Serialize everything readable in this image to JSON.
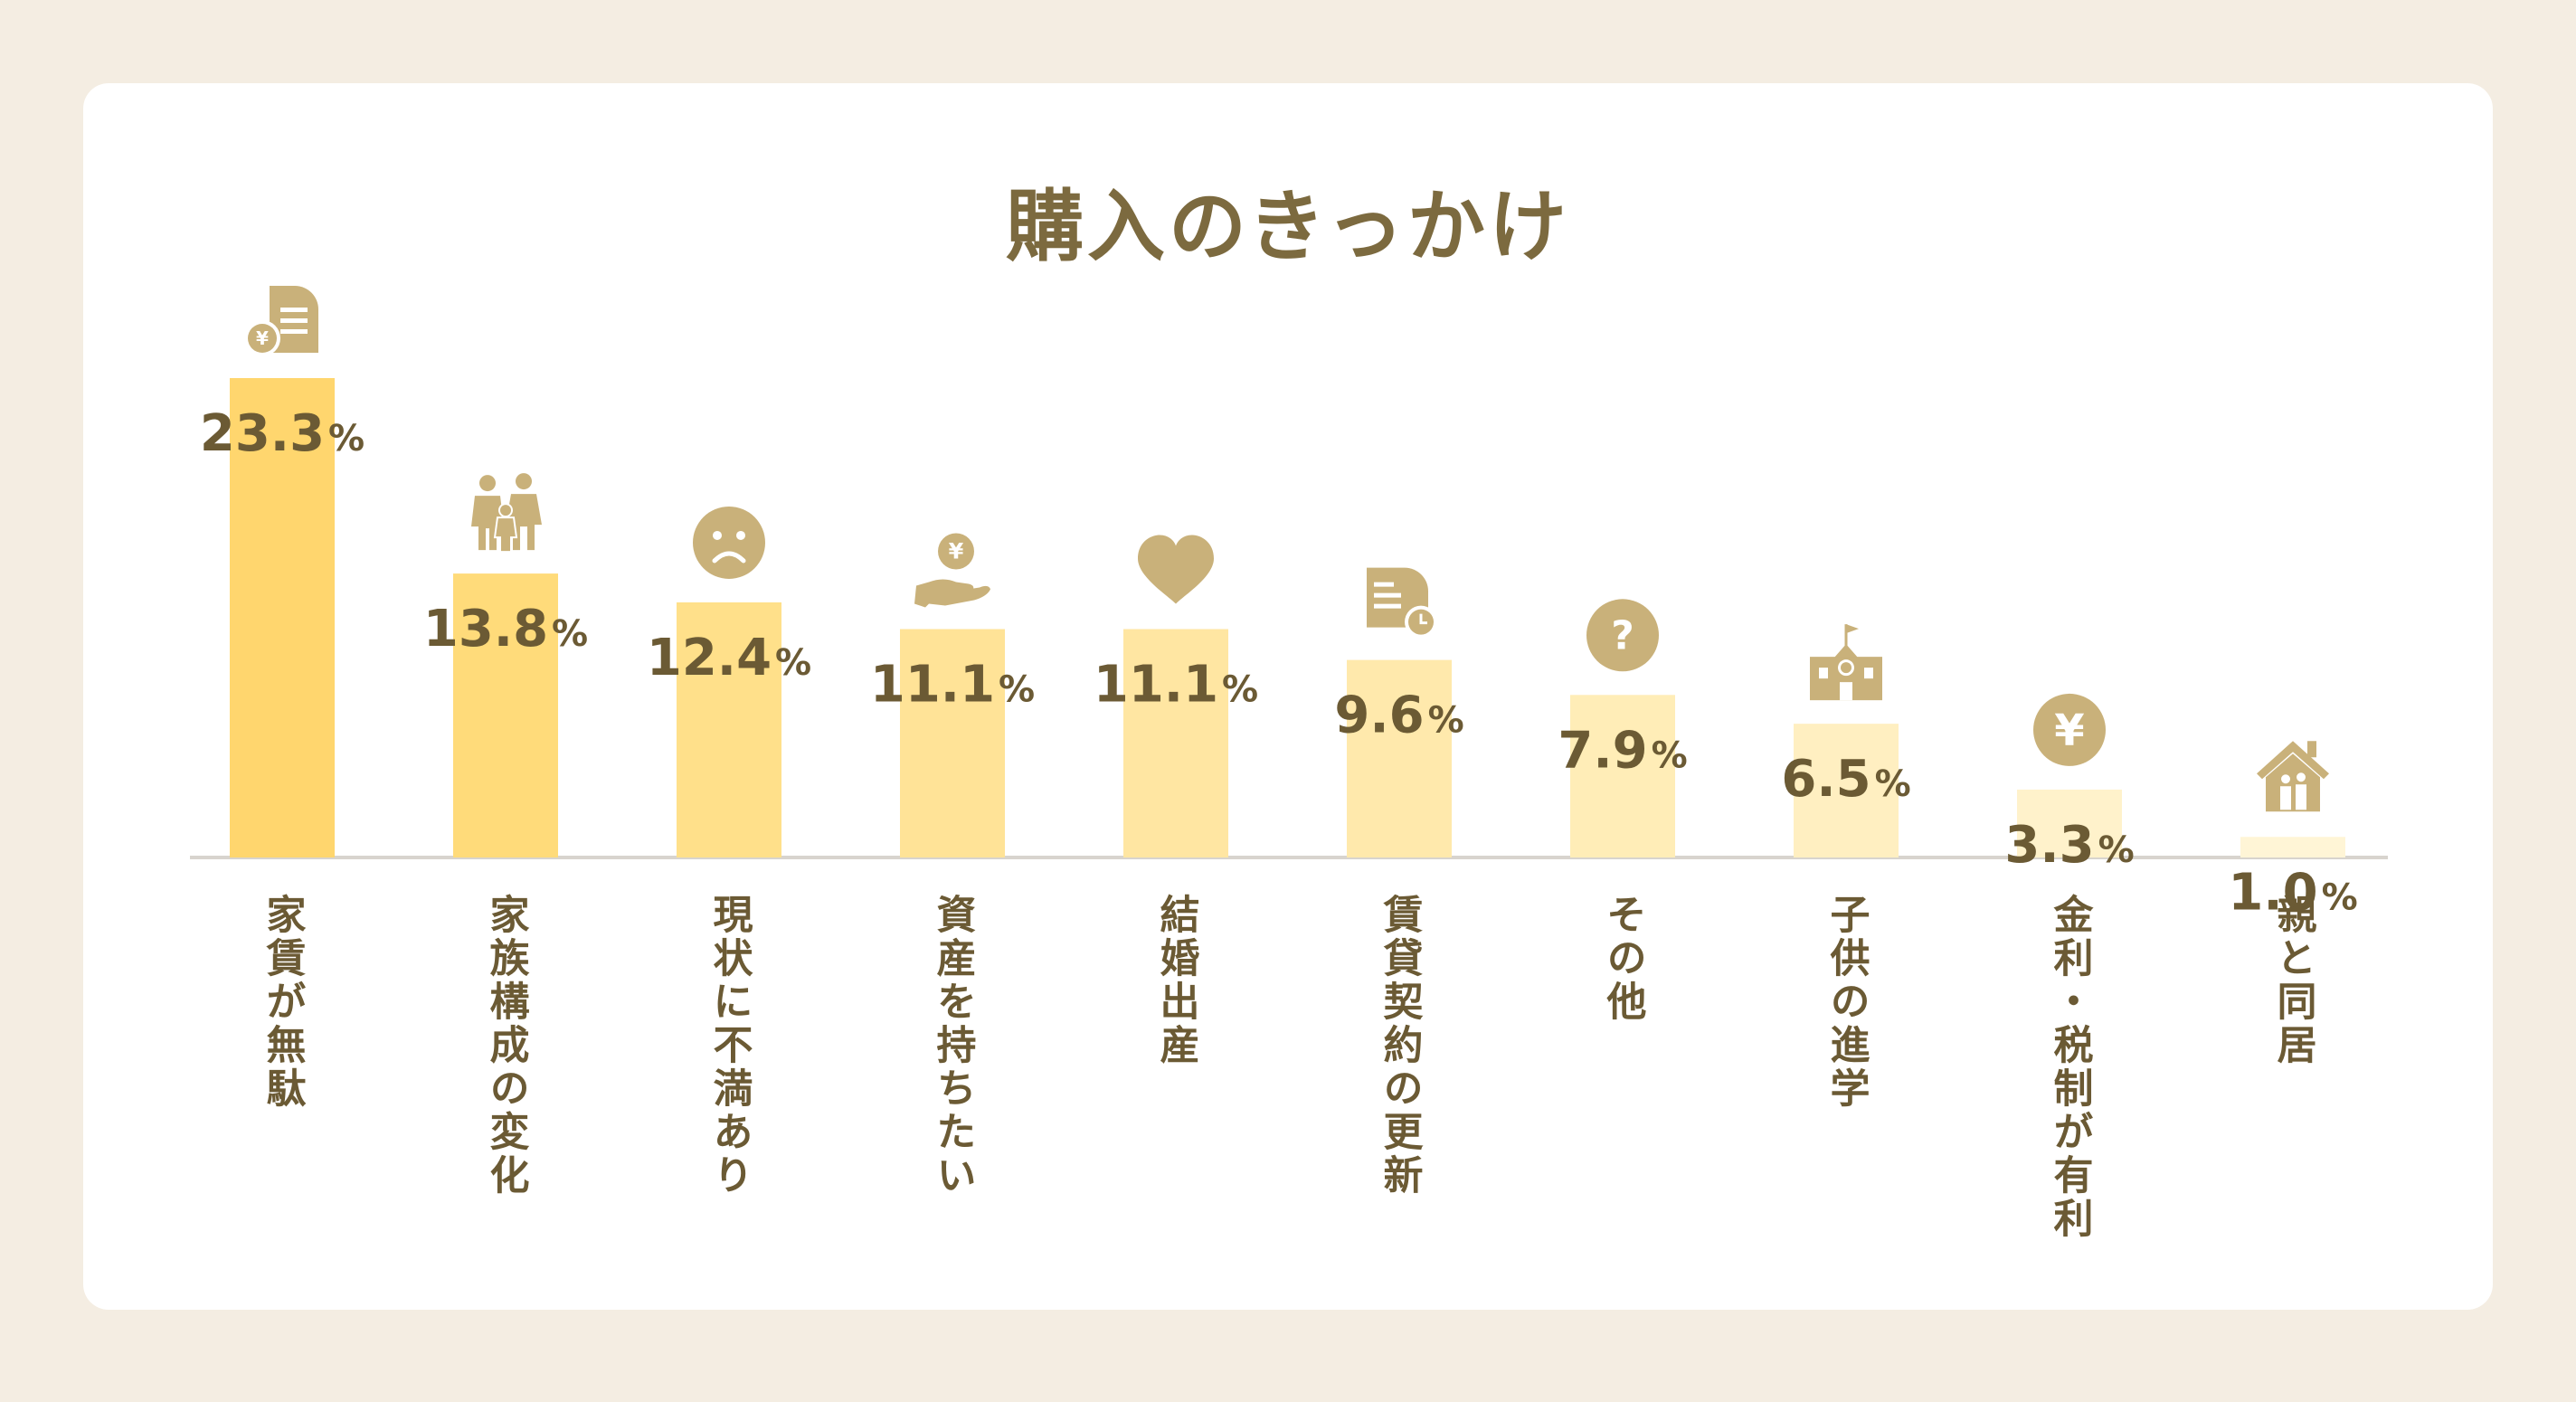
{
  "title": "購入のきっかけ",
  "colors": {
    "background": "#f4ede2",
    "card": "#ffffff",
    "text": "#6b5a34",
    "icon": "#c9b17a",
    "axis": "#d8d4ce",
    "bars": [
      "#ffd66e",
      "#ffdb7a",
      "#ffe08a",
      "#ffe397",
      "#ffe6a2",
      "#ffe9ac",
      "#ffedb7",
      "#ffefc1",
      "#fff2cb",
      "#fff5d6"
    ]
  },
  "chart_data": {
    "type": "bar",
    "title": "購入のきっかけ",
    "unit": "%",
    "ylim": [
      0,
      23.3
    ],
    "grid": false,
    "categories": [
      "家賃が無駄",
      "家族構成の変化",
      "現状に不満あり",
      "資産を持ちたい",
      "結婚出産",
      "賃貸契約の更新",
      "その他",
      "子供の進学",
      "金利・税制が有利",
      "親と同居"
    ],
    "values": [
      23.3,
      13.8,
      12.4,
      11.1,
      11.1,
      9.6,
      7.9,
      6.5,
      3.3,
      1.0
    ],
    "value_labels": [
      "23.3",
      "13.8",
      "12.4",
      "11.1",
      "11.1",
      "9.6",
      "7.9",
      "6.5",
      "3.3",
      "1.0"
    ],
    "icons": [
      "document-yen-icon",
      "family-icon",
      "sad-face-icon",
      "hand-yen-icon",
      "heart-icon",
      "document-clock-icon",
      "question-icon",
      "school-icon",
      "yen-coin-icon",
      "house-family-icon"
    ]
  }
}
